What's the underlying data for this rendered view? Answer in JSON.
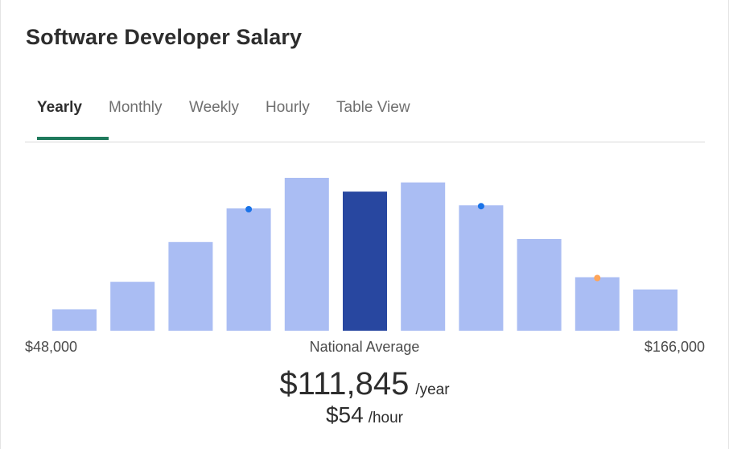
{
  "header": {
    "title": "Software Developer Salary"
  },
  "tabs": [
    {
      "label": "Yearly",
      "active": true
    },
    {
      "label": "Monthly",
      "active": false
    },
    {
      "label": "Weekly",
      "active": false
    },
    {
      "label": "Hourly",
      "active": false
    },
    {
      "label": "Table View",
      "active": false
    }
  ],
  "colors": {
    "bar": "#aabdf3",
    "bar_highlight": "#2847a0",
    "marker_blue": "#1a73e8",
    "marker_orange": "#ffa559",
    "tab_underline": "#1f7a5c"
  },
  "chart_data": {
    "type": "bar",
    "range_min_label": "$48,000",
    "range_max_label": "$166,000",
    "center_label": "National Average",
    "values": [
      14,
      32,
      58,
      80,
      100,
      91,
      97,
      82,
      60,
      35,
      27
    ],
    "highlight_index": 5,
    "markers": [
      {
        "bar_index": 3,
        "color": "blue"
      },
      {
        "bar_index": 7,
        "color": "blue"
      },
      {
        "bar_index": 9,
        "color": "orange"
      }
    ]
  },
  "salary": {
    "yearly_amount": "$111,845",
    "yearly_unit": "/year",
    "hourly_amount": "$54",
    "hourly_unit": "/hour"
  }
}
